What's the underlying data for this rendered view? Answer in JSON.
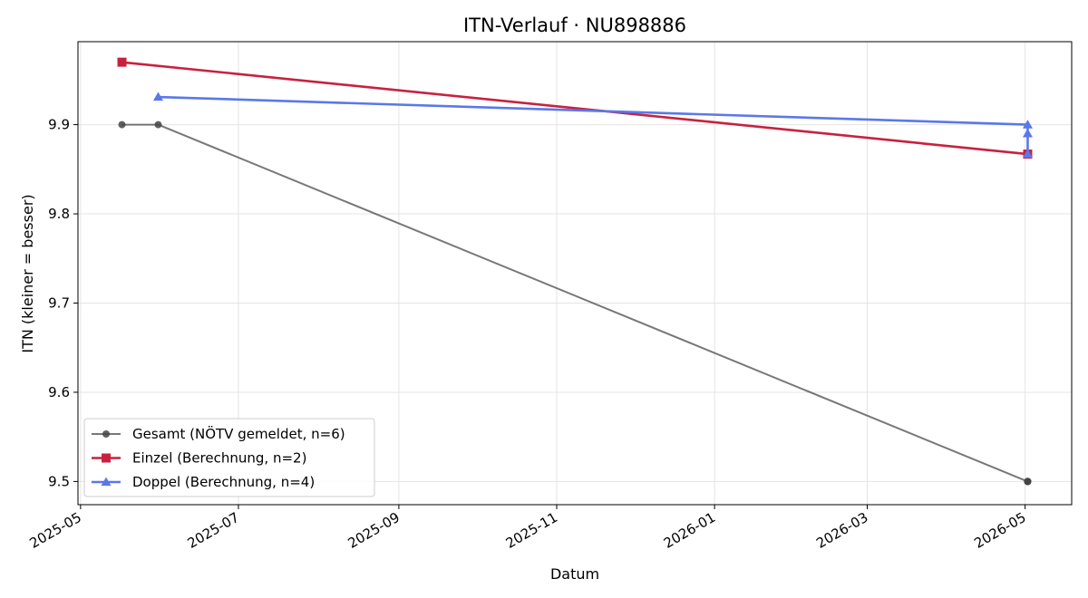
{
  "chart_data": {
    "type": "line",
    "title": "ITN-Verlauf · NU898886",
    "xlabel": "Datum",
    "ylabel": "ITN  (kleiner = besser)",
    "x_ticks": [
      "2025-05",
      "2025-07",
      "2025-09",
      "2025-11",
      "2026-01",
      "2026-03",
      "2026-05"
    ],
    "y_ticks": [
      "9.5",
      "9.6",
      "9.7",
      "9.8",
      "9.9"
    ],
    "xlim": [
      "2025-04-30",
      "2026-05-19"
    ],
    "ylim": [
      9.474,
      9.993
    ],
    "grid": true,
    "legend_position": "lower-left",
    "series": [
      {
        "name": "Gesamt (NÖTV gemeldet, n=6)",
        "color": "#444444",
        "marker": "circle",
        "points": [
          {
            "x": "2025-05-17",
            "y": 9.9
          },
          {
            "x": "2025-05-31",
            "y": 9.9
          },
          {
            "x": "2026-05-02",
            "y": 9.5
          },
          {
            "x": "2026-05-02",
            "y": 9.5
          },
          {
            "x": "2026-05-02",
            "y": 9.5
          },
          {
            "x": "2026-05-02",
            "y": 9.5
          }
        ]
      },
      {
        "name": "Einzel (Berechnung, n=2)",
        "color": "#c8213f",
        "marker": "square",
        "points": [
          {
            "x": "2025-05-17",
            "y": 9.97
          },
          {
            "x": "2026-05-02",
            "y": 9.867
          }
        ]
      },
      {
        "name": "Doppel (Berechnung, n=4)",
        "color": "#5a78ea",
        "marker": "triangle",
        "points": [
          {
            "x": "2025-05-31",
            "y": 9.931
          },
          {
            "x": "2026-05-02",
            "y": 9.9
          },
          {
            "x": "2026-05-02",
            "y": 9.89
          },
          {
            "x": "2026-05-02",
            "y": 9.867
          }
        ]
      }
    ]
  }
}
